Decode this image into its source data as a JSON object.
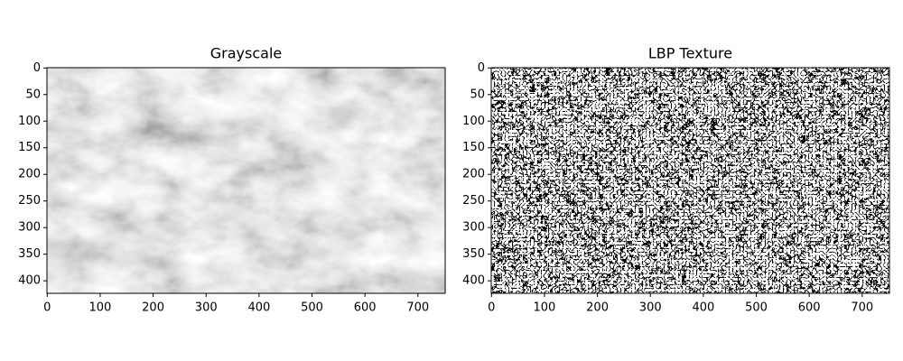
{
  "chart_data": [
    {
      "type": "image",
      "title": "Grayscale",
      "xlim": [
        -0.5,
        751.5
      ],
      "ylim": [
        423.5,
        -0.5
      ],
      "xticks": [
        0,
        100,
        200,
        300,
        400,
        500,
        600,
        700
      ],
      "yticks": [
        0,
        50,
        100,
        150,
        200,
        250,
        300,
        350,
        400
      ]
    },
    {
      "type": "image",
      "title": "LBP Texture",
      "xlim": [
        -0.5,
        751.5
      ],
      "ylim": [
        423.5,
        -0.5
      ],
      "xticks": [
        0,
        100,
        200,
        300,
        400,
        500,
        600,
        700
      ],
      "yticks": [
        0,
        50,
        100,
        150,
        200,
        250,
        300,
        350,
        400
      ]
    }
  ]
}
